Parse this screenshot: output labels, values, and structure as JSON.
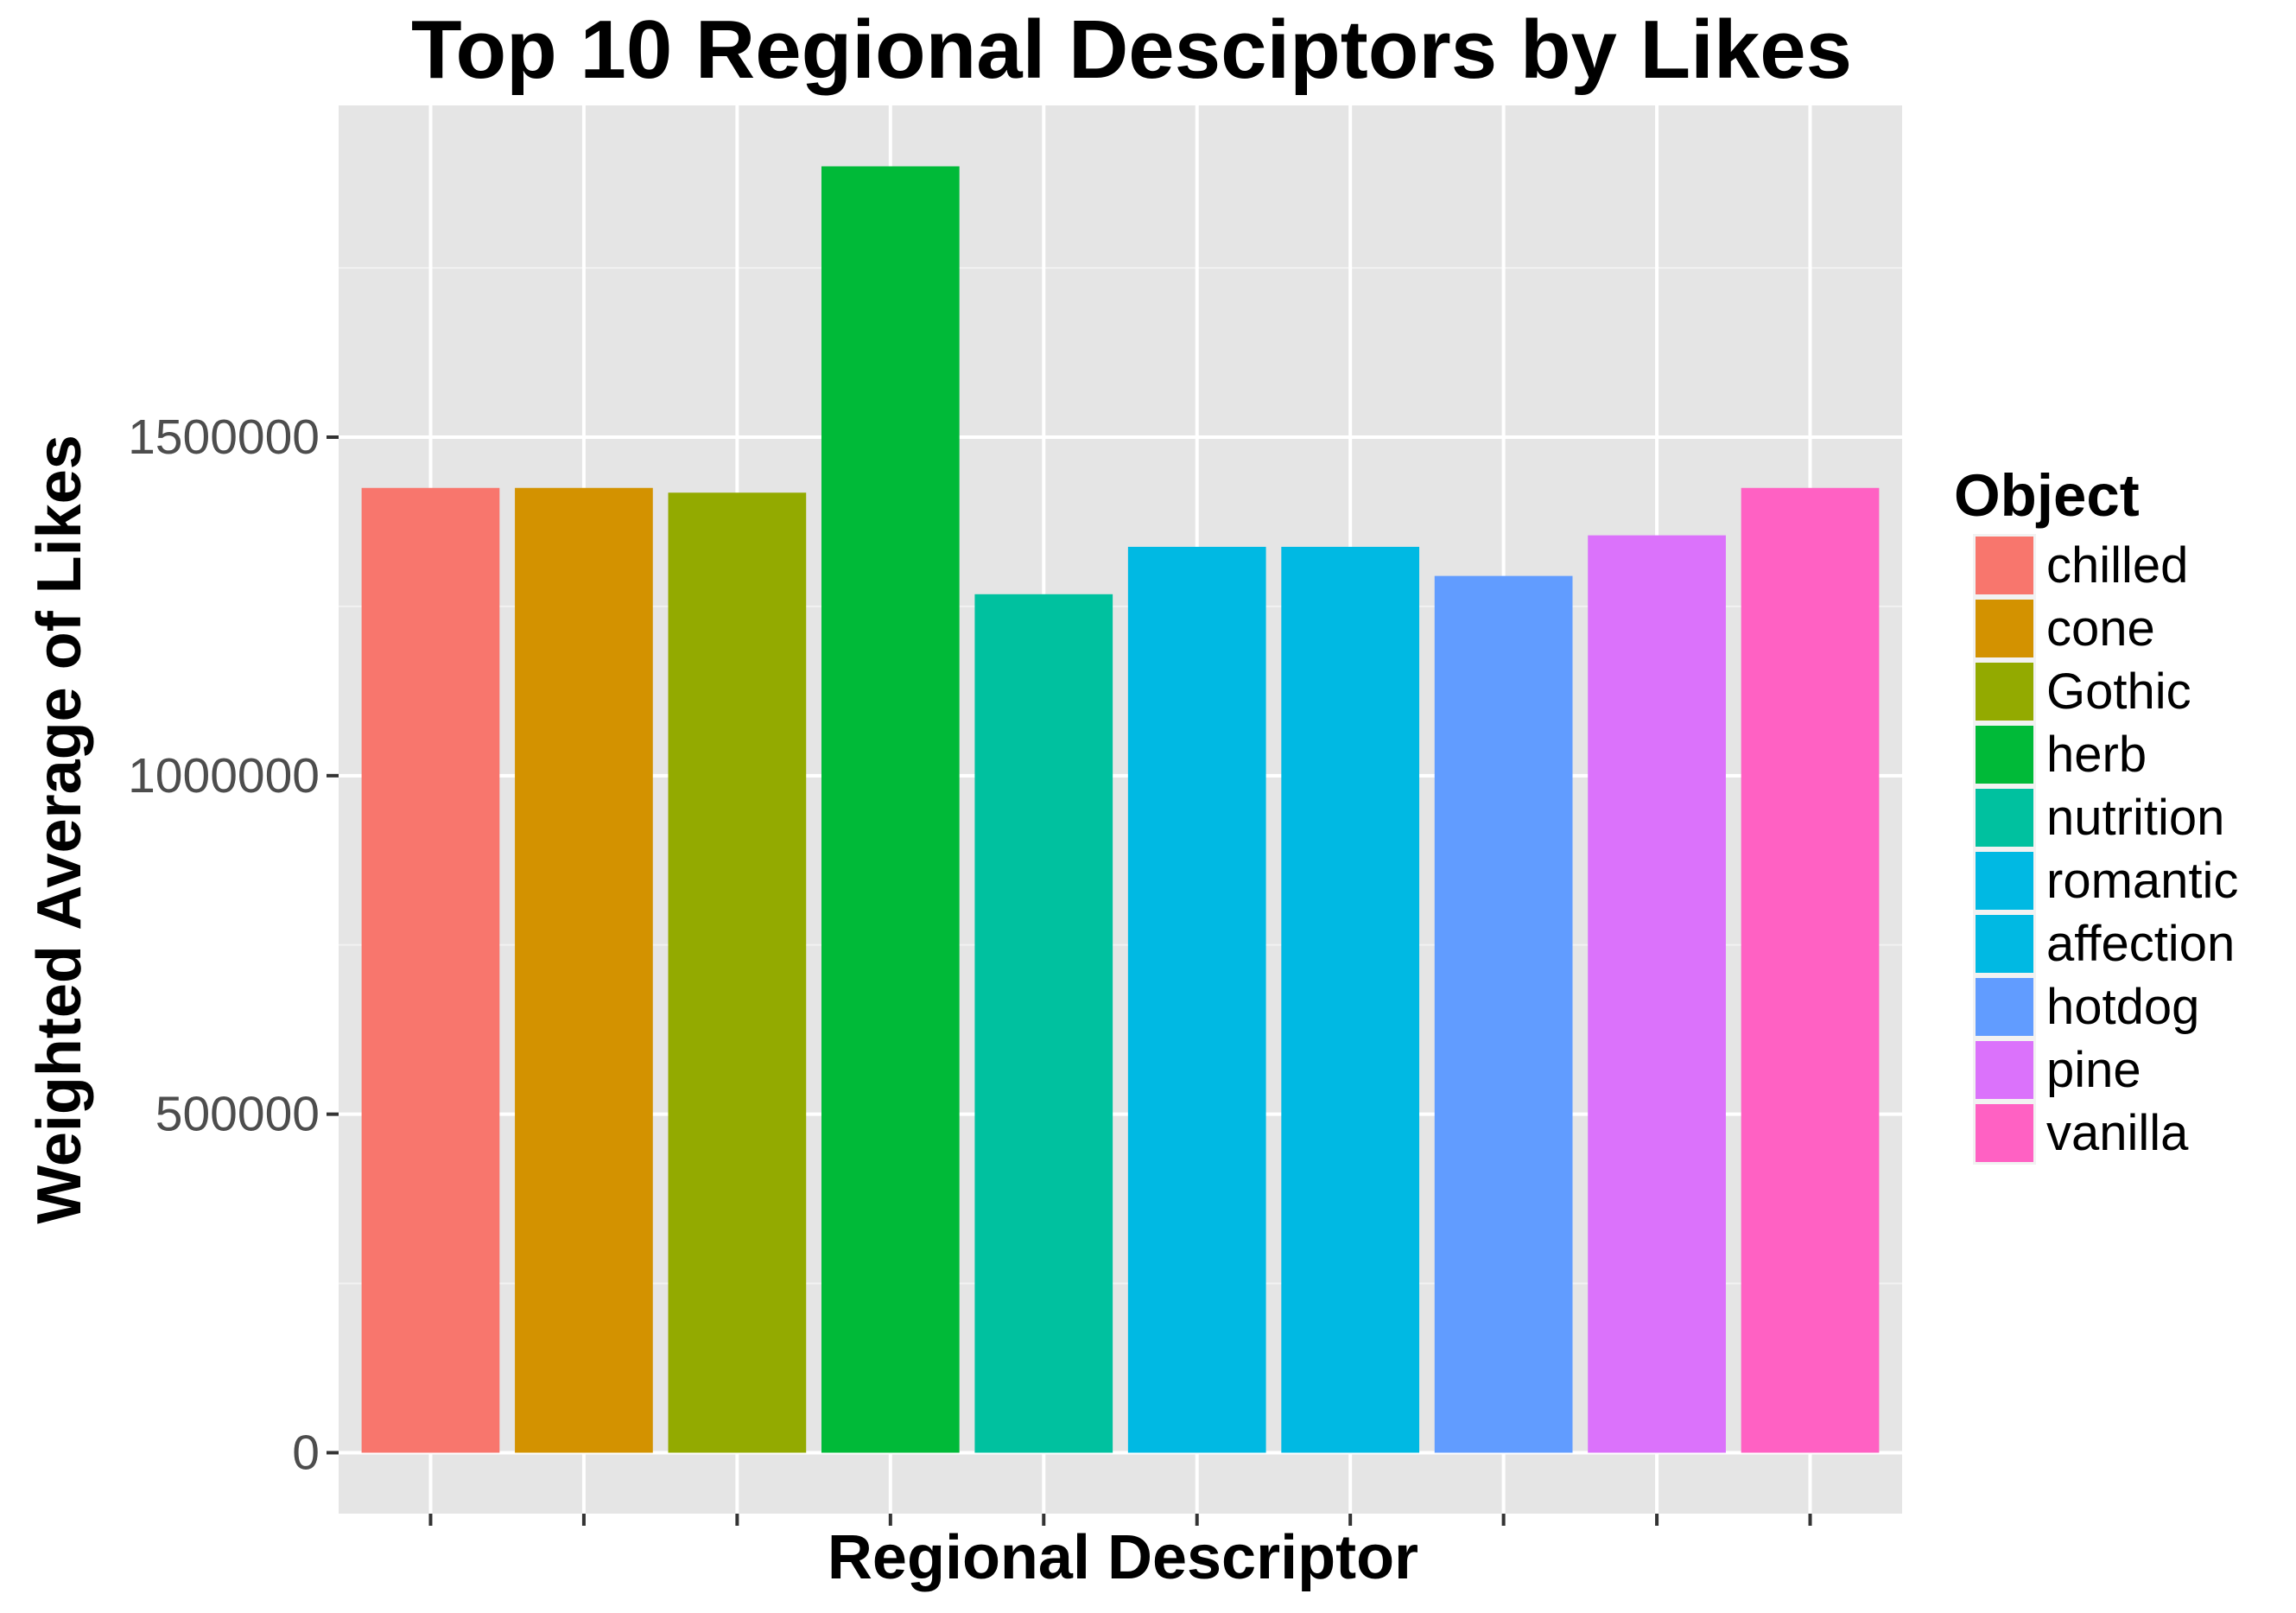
{
  "chart_data": {
    "type": "bar",
    "title": "Top 10 Regional Desciptors by Likes",
    "xlabel": "Regional Descriptor",
    "ylabel": "Weighted Average of Likes",
    "categories": [
      "chilled",
      "cone",
      "Gothic",
      "herb",
      "nutrition",
      "romantic",
      "affection",
      "hotdog",
      "pine",
      "vanilla"
    ],
    "values": [
      1425000,
      1425000,
      1418000,
      1900000,
      1268000,
      1338000,
      1338000,
      1295000,
      1355000,
      1425000
    ],
    "colors": [
      "#F8766D",
      "#D39200",
      "#93AA00",
      "#00BA38",
      "#00C19F",
      "#00B9E3",
      "#00B9E3",
      "#619CFF",
      "#DB72FB",
      "#FF61C3"
    ],
    "ylim": [
      -90000,
      1990000
    ],
    "yticks": [
      0,
      500000,
      1000000,
      1500000
    ],
    "ytick_labels": [
      "0",
      "500000",
      "1000000",
      "1500000"
    ],
    "grid": true,
    "legend": {
      "title": "Object",
      "placement": "right"
    }
  }
}
